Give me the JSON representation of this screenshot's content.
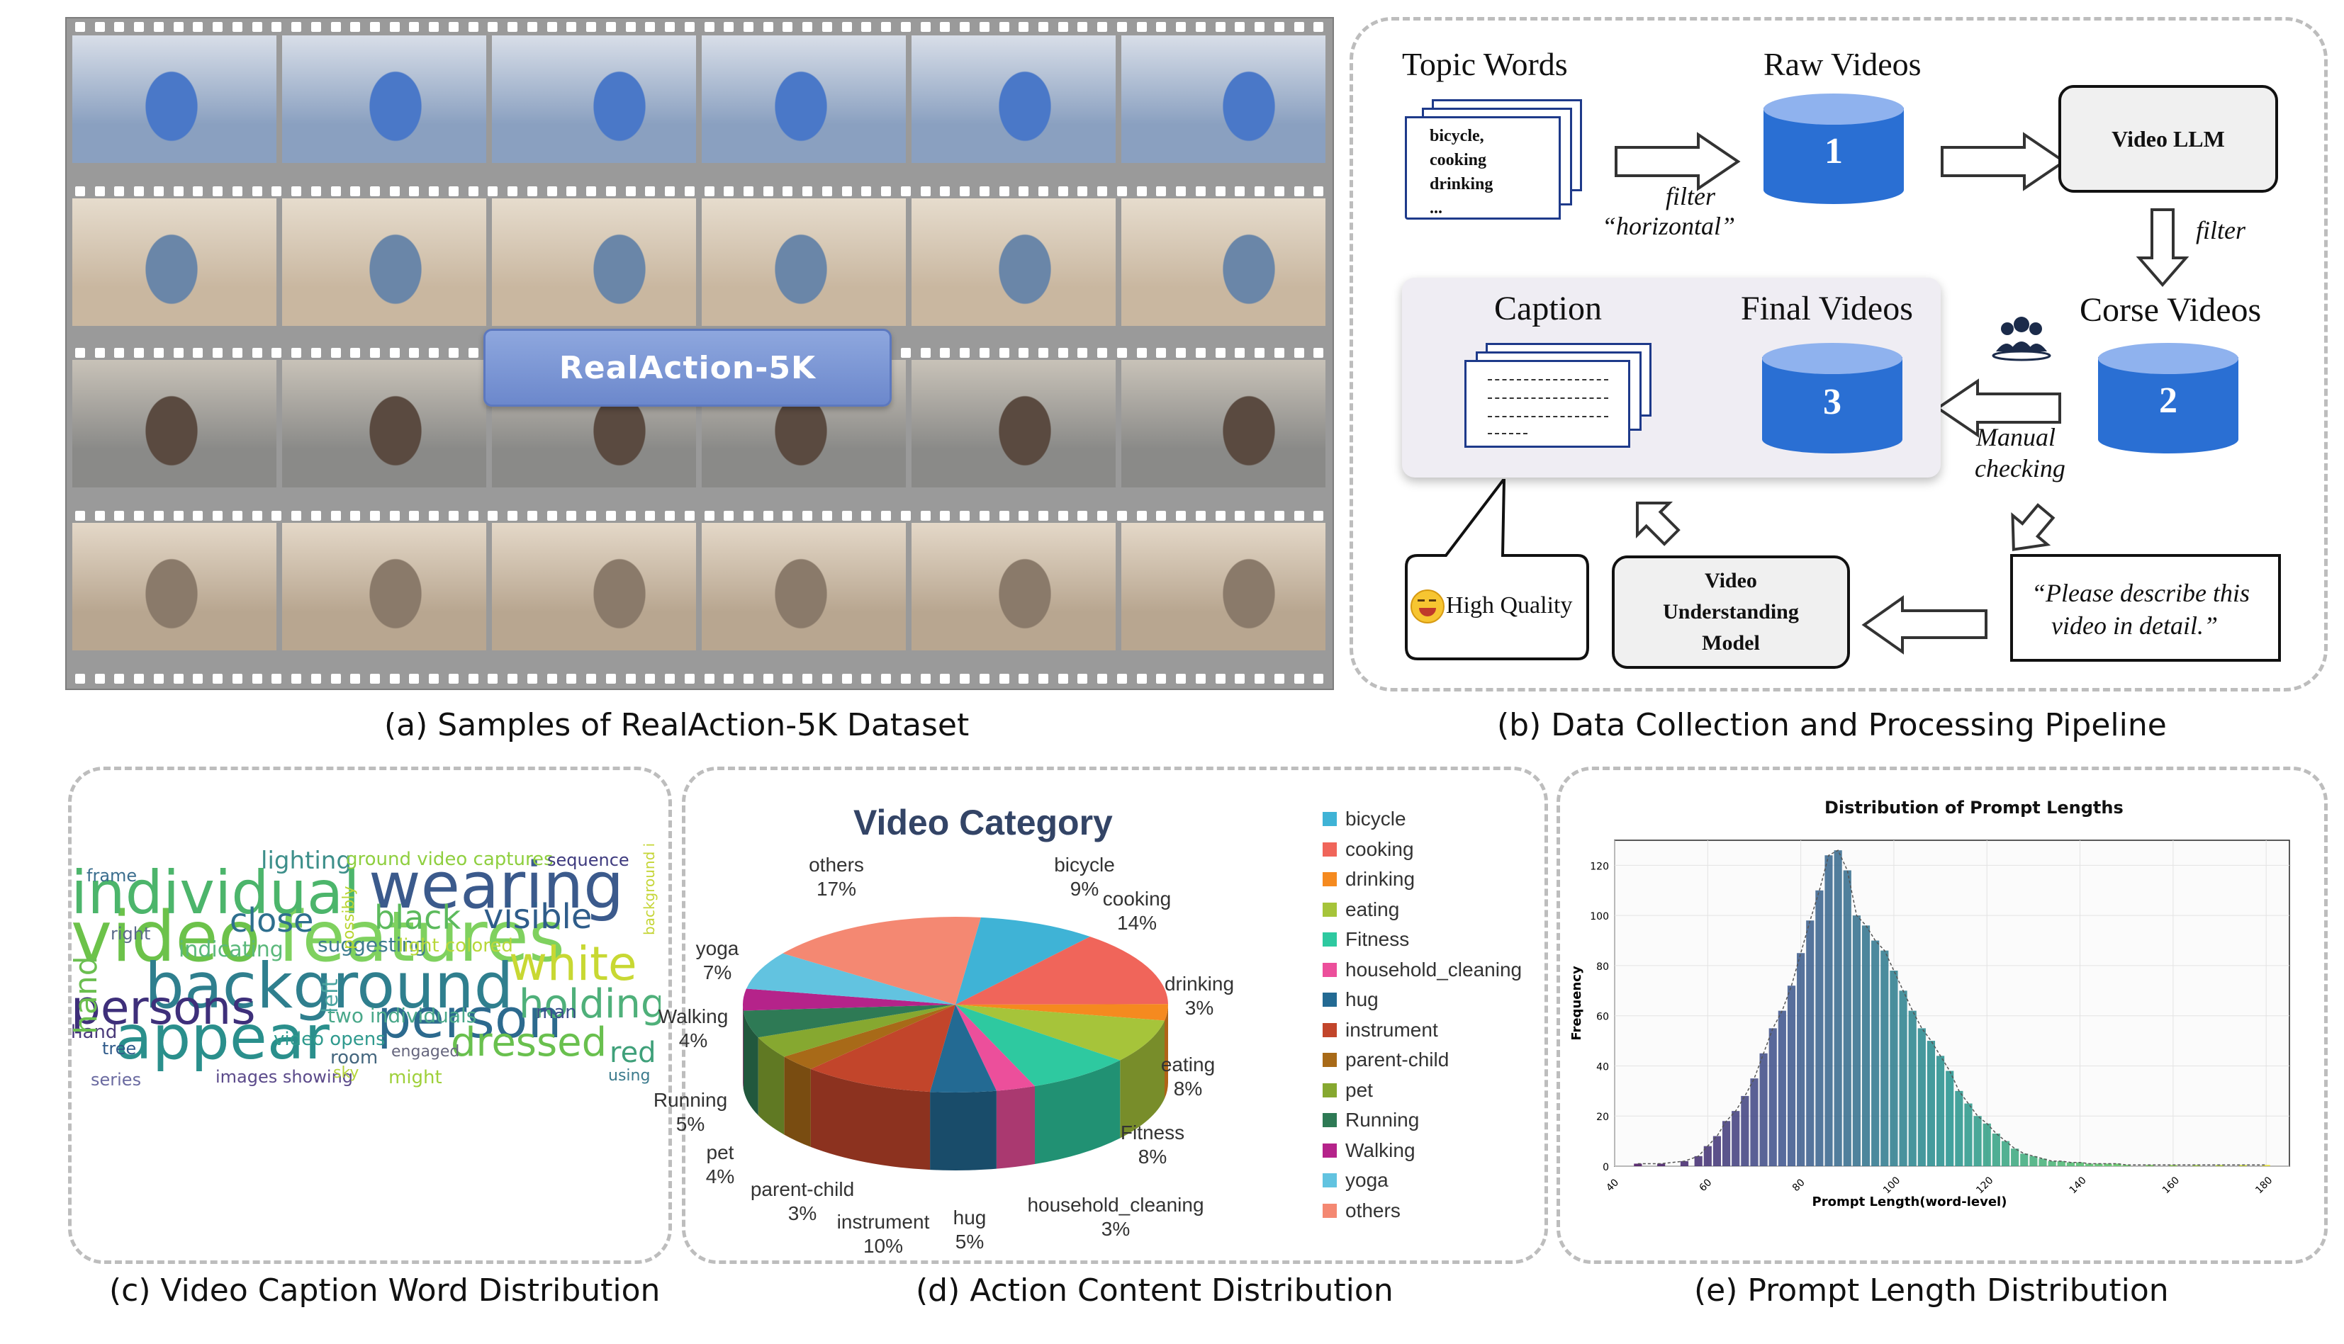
{
  "panel_a": {
    "badge": "RealAction-5K",
    "caption": "(a) Samples of RealAction-5K Dataset"
  },
  "panel_b": {
    "topic_words_title": "Topic Words",
    "topic_words": [
      "bicycle,",
      "cooking",
      "drinking",
      "..."
    ],
    "raw_videos_title": "Raw Videos",
    "filter_horizontal": "filter",
    "filter_horizontal_2": "“horizontal”",
    "video_llm": "Video LLM",
    "filter": "filter",
    "corse_videos": "Corse Videos",
    "caption_title": "Caption",
    "final_videos": "Final Videos",
    "manual_checking_1": "Manual",
    "manual_checking_2": "checking",
    "high_quality": "High Quality",
    "vum_1": "Video",
    "vum_2": "Understanding",
    "vum_3": "Model",
    "prompt_1": "“Please describe this",
    "prompt_2": "video in detail.”",
    "db1": "1",
    "db2": "2",
    "db3": "3",
    "caption": "(b) Data Collection and Processing Pipeline"
  },
  "panel_c": {
    "caption": "(c) Video Caption Word Distribution",
    "words": [
      {
        "t": "video",
        "c": "#6cc24a"
      },
      {
        "t": "features",
        "c": "#7fd15f"
      },
      {
        "t": "background",
        "c": "#2f7f8e"
      },
      {
        "t": "wearing",
        "c": "#3b5a8c"
      },
      {
        "t": "individual",
        "c": "#4cb56b"
      },
      {
        "t": "appear",
        "c": "#2a8f8c"
      },
      {
        "t": "person",
        "c": "#2c6a8e"
      },
      {
        "t": "persons",
        "c": "#3e2f7a"
      },
      {
        "t": "white",
        "c": "#c8d833"
      },
      {
        "t": "holding",
        "c": "#4fb07a"
      },
      {
        "t": "dressed",
        "c": "#69c04e"
      },
      {
        "t": "visible",
        "c": "#2f5d8a"
      },
      {
        "t": "black",
        "c": "#5cba5c"
      },
      {
        "t": "close",
        "c": "#2e6f8e"
      },
      {
        "t": "lighting",
        "c": "#3d8f8a"
      },
      {
        "t": "ground video captures",
        "c": "#8fcf3f"
      },
      {
        "t": "sequence",
        "c": "#3e3a7e"
      },
      {
        "t": "indicating",
        "c": "#5ab87a"
      },
      {
        "t": "suggesting",
        "c": "#3e7c8e"
      },
      {
        "t": "light colored",
        "c": "#b8d83a"
      },
      {
        "t": "two individuals",
        "c": "#4aa88a"
      },
      {
        "t": "man",
        "c": "#3b4f8c"
      },
      {
        "t": "red",
        "c": "#3fa07a"
      },
      {
        "t": "room",
        "c": "#44667e"
      },
      {
        "t": "might",
        "c": "#9fd03a"
      },
      {
        "t": "images showing",
        "c": "#5b4a8a"
      },
      {
        "t": "video opens",
        "c": "#2f9a8e"
      },
      {
        "t": "hand",
        "c": "#4a3a7a"
      },
      {
        "t": "frame",
        "c": "#3b6e8e"
      },
      {
        "t": "right",
        "c": "#5a6a8a"
      },
      {
        "t": "sky",
        "c": "#b4d23a"
      },
      {
        "t": "tree",
        "c": "#2f5a8a"
      },
      {
        "t": "series",
        "c": "#6a6aa0"
      },
      {
        "t": "hand",
        "c": "#6bbf50"
      },
      {
        "t": "left",
        "c": "#4aa4a0"
      },
      {
        "t": "possibly",
        "c": "#b9d530"
      },
      {
        "t": "background includes",
        "c": "#c5d536"
      },
      {
        "t": "engaged",
        "c": "#66667e"
      },
      {
        "t": "using",
        "c": "#3b7a8c"
      }
    ]
  },
  "panel_d": {
    "caption": "(d) Action Content Distribution",
    "chart_data": {
      "type": "pie",
      "title": "Video Category",
      "categories": [
        "bicycle",
        "cooking",
        "drinking",
        "eating",
        "Fitness",
        "household_cleaning",
        "hug",
        "instrument",
        "parent-child",
        "pet",
        "Running",
        "Walking",
        "yoga",
        "others"
      ],
      "values": [
        9,
        14,
        3,
        8,
        8,
        3,
        5,
        10,
        3,
        4,
        5,
        4,
        7,
        17
      ],
      "colors": [
        "#3fb3d6",
        "#f0655a",
        "#f58a1f",
        "#a6c43a",
        "#2ec9a0",
        "#ec4f9b",
        "#236a93",
        "#c2452b",
        "#a86a18",
        "#86a830",
        "#2e7a55",
        "#b5238a",
        "#62c3e0",
        "#f48872"
      ],
      "labels": [
        "9%",
        "14%",
        "3%",
        "8%",
        "8%",
        "3%",
        "5%",
        "10%",
        "3%",
        "4%",
        "5%",
        "4%",
        "7%",
        "17%"
      ],
      "legend": "right"
    }
  },
  "panel_e": {
    "caption": "(e) Prompt Length Distribution",
    "chart_data": {
      "type": "bar",
      "title": "Distribution of Prompt Lengths",
      "xlabel": "Prompt Length(word-level)",
      "ylabel": "Frequency",
      "xlim": [
        40,
        185
      ],
      "ylim": [
        0,
        130
      ],
      "xticks": [
        40,
        60,
        80,
        100,
        120,
        140,
        160,
        180
      ],
      "yticks": [
        0,
        20,
        40,
        60,
        80,
        100,
        120
      ],
      "x": [
        45,
        50,
        55,
        58,
        60,
        62,
        64,
        66,
        68,
        70,
        72,
        74,
        76,
        78,
        80,
        82,
        84,
        86,
        88,
        90,
        92,
        94,
        96,
        98,
        100,
        102,
        104,
        106,
        108,
        110,
        112,
        114,
        116,
        118,
        120,
        122,
        124,
        126,
        128,
        130,
        132,
        134,
        136,
        138,
        140,
        142,
        144,
        146,
        148,
        150,
        155,
        160,
        165,
        170,
        175,
        180
      ],
      "values": [
        1,
        1,
        2,
        4,
        8,
        12,
        18,
        22,
        28,
        35,
        45,
        55,
        62,
        72,
        85,
        98,
        110,
        124,
        126,
        118,
        100,
        96,
        90,
        86,
        78,
        70,
        62,
        55,
        50,
        44,
        38,
        30,
        25,
        20,
        17,
        13,
        10,
        7,
        5,
        4,
        3,
        2,
        2,
        1.5,
        1.5,
        1,
        1,
        1,
        1,
        0.5,
        0.5,
        0.5,
        0.5,
        0.5,
        0.5,
        0.5
      ]
    }
  }
}
